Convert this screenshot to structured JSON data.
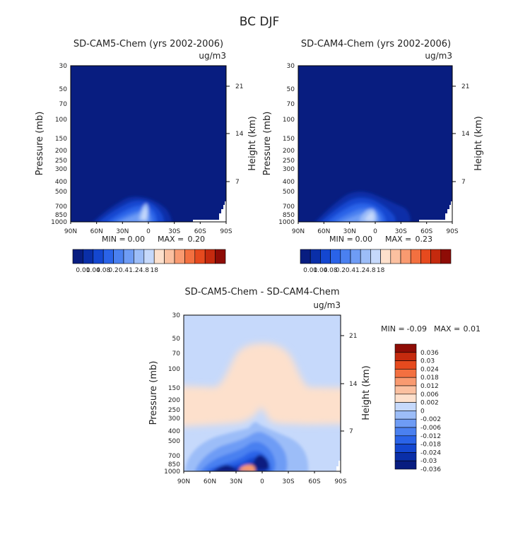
{
  "chart_data": {
    "type": "heatmap",
    "title": "BC DJF",
    "panels": [
      {
        "id": "cam5",
        "title": "SD-CAM5-Chem (yrs 2002-2006)",
        "units": "ug/m3",
        "ylabel": "Pressure (mb)",
        "y2label": "Height (km)",
        "x_ticks": [
          "90N",
          "60N",
          "30N",
          "0",
          "30S",
          "60S",
          "90S"
        ],
        "p_ticks": [
          "30",
          "50",
          "70",
          "100",
          "150",
          "200",
          "250",
          "300",
          "400",
          "500",
          "700",
          "850",
          "1000"
        ],
        "h_ticks": [
          "21",
          "14",
          "7"
        ],
        "min_label": "MIN =",
        "min_value": "0.00",
        "max_label": "MAX =",
        "max_value": "0.20",
        "colorbar": {
          "colors": [
            "#081d80",
            "#0a2fa8",
            "#1447d0",
            "#2a63e8",
            "#4a80f0",
            "#6e9cf5",
            "#9cbdf8",
            "#c6d9fb",
            "#fde0cc",
            "#fbc0a0",
            "#f99a70",
            "#f37040",
            "#e64a1e",
            "#c52a0e",
            "#8e0c06"
          ],
          "labels": [
            "0.01",
            "0.04",
            "0.08",
            "0.2",
            "0.4",
            "1.2",
            "4.8",
            "18"
          ]
        }
      },
      {
        "id": "cam4",
        "title": "SD-CAM4-Chem (yrs 2002-2006)",
        "units": "ug/m3",
        "ylabel": "Pressure (mb)",
        "y2label": "Height (km)",
        "x_ticks": [
          "90N",
          "60N",
          "30N",
          "0",
          "30S",
          "60S",
          "90S"
        ],
        "p_ticks": [
          "30",
          "50",
          "70",
          "100",
          "150",
          "200",
          "250",
          "300",
          "400",
          "500",
          "700",
          "850",
          "1000"
        ],
        "h_ticks": [
          "21",
          "14",
          "7"
        ],
        "min_label": "MIN =",
        "min_value": "0.00",
        "max_label": "MAX =",
        "max_value": "0.23",
        "colorbar": {
          "colors": [
            "#081d80",
            "#0a2fa8",
            "#1447d0",
            "#2a63e8",
            "#4a80f0",
            "#6e9cf5",
            "#9cbdf8",
            "#c6d9fb",
            "#fde0cc",
            "#fbc0a0",
            "#f99a70",
            "#f37040",
            "#e64a1e",
            "#c52a0e",
            "#8e0c06"
          ],
          "labels": [
            "0.01",
            "0.04",
            "0.08",
            "0.2",
            "0.4",
            "1.2",
            "4.8",
            "18"
          ]
        }
      },
      {
        "id": "diff",
        "title": "SD-CAM5-Chem - SD-CAM4-Chem",
        "units": "ug/m3",
        "ylabel": "Pressure (mb)",
        "y2label": "Height (km)",
        "x_ticks": [
          "90N",
          "60N",
          "30N",
          "0",
          "30S",
          "60S",
          "90S"
        ],
        "p_ticks": [
          "30",
          "50",
          "70",
          "100",
          "150",
          "200",
          "250",
          "300",
          "400",
          "500",
          "700",
          "850",
          "1000"
        ],
        "h_ticks": [
          "21",
          "14",
          "7"
        ],
        "min_label": "MIN =",
        "min_value": "-0.09",
        "max_label": "MAX =",
        "max_value": "0.01",
        "colorbar": {
          "colors": [
            "#8e0c06",
            "#c52a0e",
            "#e64a1e",
            "#f37040",
            "#f99a70",
            "#fbc0a0",
            "#fde0cc",
            "#c6d9fb",
            "#9cbdf8",
            "#6e9cf5",
            "#4a80f0",
            "#2a63e8",
            "#1447d0",
            "#0a2fa8",
            "#081d80"
          ],
          "labels": [
            "0.036",
            "0.03",
            "0.024",
            "0.018",
            "0.012",
            "0.006",
            "0.002",
            "0",
            "-0.002",
            "-0.006",
            "-0.012",
            "-0.018",
            "-0.024",
            "-0.03",
            "-0.036"
          ]
        }
      }
    ]
  }
}
